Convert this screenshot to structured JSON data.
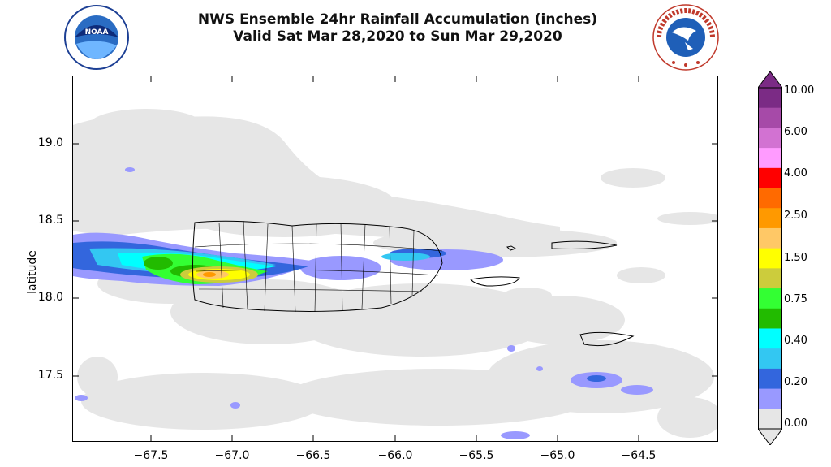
{
  "title": {
    "line1": "NWS Ensemble 24hr Rainfall Accumulation (inches)",
    "line2": "Valid Sat Mar 28,2020 to Sun Mar 29,2020"
  },
  "logos": {
    "left": "noaa-logo",
    "left_text": "NOAA",
    "right": "nws-logo",
    "right_text": "NATIONAL WEATHER SERVICE"
  },
  "axes": {
    "ylabel": "latitude",
    "yticks": [
      "19.0",
      "18.5",
      "18.0",
      "17.5"
    ],
    "xticks": [
      "−67.5",
      "−67.0",
      "−66.5",
      "−66.0",
      "−65.5",
      "−65.0",
      "−64.5"
    ],
    "lon_range": [
      -67.95,
      -64.35
    ],
    "lat_range": [
      17.08,
      19.43
    ]
  },
  "colorbar": {
    "labels": [
      "10.00",
      "6.00",
      "4.00",
      "2.50",
      "1.50",
      "0.75",
      "0.40",
      "0.20",
      "0.00"
    ],
    "colors": [
      "#7b2b85",
      "#a64aa8",
      "#d272d2",
      "#ff9bff",
      "#ff0000",
      "#ff6a00",
      "#ff9900",
      "#ffc866",
      "#ffff00",
      "#cccc3c",
      "#33ff33",
      "#22bb00",
      "#00ffff",
      "#33c7f2",
      "#3366dd",
      "#9999ff",
      "#e6e6e6"
    ]
  },
  "map_data": {
    "max_rain_area": "western Puerto Rico, 1.50-2.50 in",
    "islands": [
      "Puerto Rico",
      "Vieques",
      "US Virgin Islands",
      "St. Croix"
    ]
  }
}
